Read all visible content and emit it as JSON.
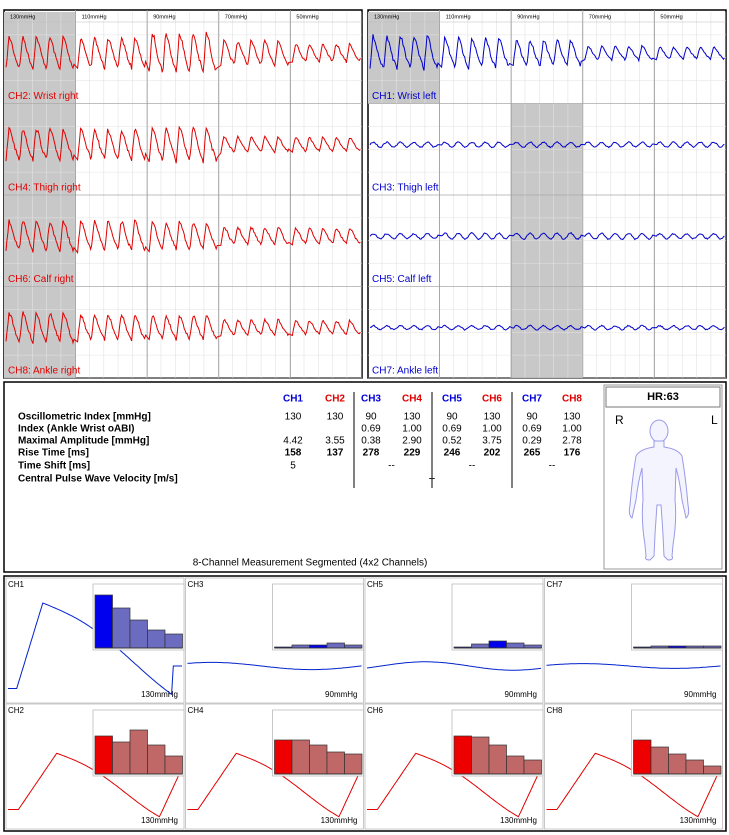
{
  "waveform_panels": {
    "pressures": [
      "130mmHg",
      "110mmHg",
      "90mmHg",
      "70mmHg",
      "50mmHg"
    ],
    "left_channels": [
      "CH2: Wrist right",
      "CH4: Thigh right",
      "CH6: Calf right",
      "CH8: Ankle right"
    ],
    "right_channels": [
      "CH1: Wrist left",
      "CH3: Thigh left",
      "CH5: Calf left",
      "CH7: Ankle left"
    ]
  },
  "table": {
    "headers": [
      "CH1",
      "CH2",
      "CH3",
      "CH4",
      "CH5",
      "CH6",
      "CH7",
      "CH8"
    ],
    "rows": [
      {
        "label": "Oscillometric Index [mmHg]",
        "cells": [
          "130",
          "130",
          "90",
          "130",
          "90",
          "130",
          "90",
          "130"
        ]
      },
      {
        "label": "Index (Ankle Wrist oABI)",
        "cells": [
          null,
          null,
          "0.69",
          "1.00",
          "0.69",
          "1.00",
          "0.69",
          "1.00"
        ]
      },
      {
        "label": "Maximal Amplitude [mmHg]",
        "cells": [
          "4.42",
          "3.55",
          "0.38",
          "2.90",
          "0.52",
          "3.75",
          "0.29",
          "2.78"
        ]
      },
      {
        "label": "Rise Time [ms]",
        "cells": [
          "158",
          "137",
          "278",
          "229",
          "246",
          "202",
          "265",
          "176"
        ],
        "bold": true
      },
      {
        "label": "Time Shift [ms]",
        "cells": [
          "5",
          null,
          "--",
          null,
          "--",
          null,
          "--",
          null
        ]
      },
      {
        "label": "Central Pulse Wave Velocity [m/s]",
        "cells": [
          null,
          null,
          null,
          "--",
          null,
          null,
          null,
          null
        ]
      }
    ],
    "footer": "8-Channel Measurement Segmented (4x2 Channels)"
  },
  "heart_rate": "HR:63",
  "body_sides": [
    "R",
    "L"
  ],
  "detail_panels": [
    {
      "channel": "CH1",
      "pressure": "130mmHg",
      "histogram": [
        53,
        40,
        28,
        18,
        14
      ]
    },
    {
      "channel": "CH3",
      "pressure": "90mmHg",
      "histogram": [
        1,
        3,
        3,
        5,
        3
      ]
    },
    {
      "channel": "CH5",
      "pressure": "90mmHg",
      "histogram": [
        1,
        4,
        7,
        5,
        3
      ]
    },
    {
      "channel": "CH7",
      "pressure": "90mmHg",
      "histogram": [
        1,
        2,
        2,
        2,
        2
      ]
    },
    {
      "channel": "CH2",
      "pressure": "130mmHg",
      "histogram": [
        38,
        32,
        44,
        29,
        18
      ]
    },
    {
      "channel": "CH4",
      "pressure": "130mmHg",
      "histogram": [
        34,
        34,
        29,
        22,
        20
      ]
    },
    {
      "channel": "CH6",
      "pressure": "130mmHg",
      "histogram": [
        38,
        37,
        29,
        18,
        14
      ]
    },
    {
      "channel": "CH8",
      "pressure": "130mmHg",
      "histogram": [
        34,
        27,
        20,
        14,
        8
      ]
    }
  ]
}
